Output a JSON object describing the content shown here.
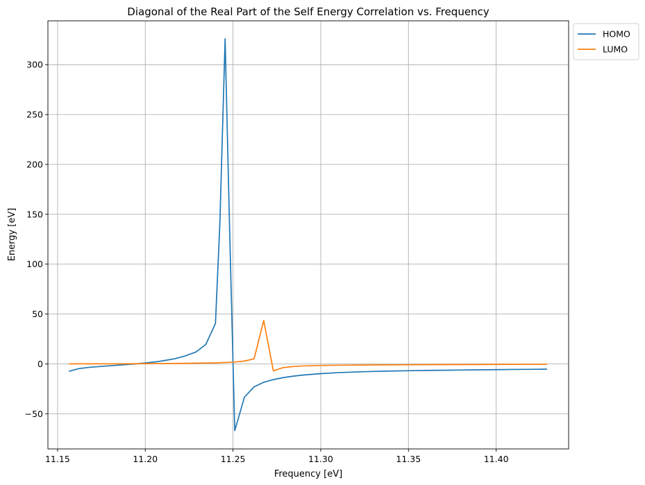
{
  "chart_data": {
    "type": "line",
    "title": "Diagonal of the Real Part of the Self Energy Correlation vs. Frequency",
    "xlabel": "Frequency [eV]",
    "ylabel": "Energy [eV]",
    "xlim": [
      11.1445,
      11.4413
    ],
    "ylim": [
      -85.3,
      344
    ],
    "grid": true,
    "legend_position": "outside-top-right",
    "x_ticks": [
      11.15,
      11.2,
      11.25,
      11.3,
      11.35,
      11.4
    ],
    "x_tick_labels": [
      "11.15",
      "11.20",
      "11.25",
      "11.30",
      "11.35",
      "11.40"
    ],
    "y_ticks": [
      -50,
      0,
      50,
      100,
      150,
      200,
      250,
      300
    ],
    "y_tick_labels": [
      "−50",
      "0",
      "50",
      "100",
      "150",
      "200",
      "250",
      "300"
    ],
    "series": [
      {
        "name": "HOMO",
        "color": "#1f77b4",
        "x": [
          11.1565,
          11.162,
          11.1675,
          11.173,
          11.1785,
          11.184,
          11.1895,
          11.195,
          11.2005,
          11.206,
          11.2115,
          11.217,
          11.2225,
          11.229,
          11.2345,
          11.24,
          11.2425,
          11.2455,
          11.248,
          11.251,
          11.2565,
          11.262,
          11.2675,
          11.273,
          11.2785,
          11.284,
          11.29,
          11.3,
          11.31,
          11.32,
          11.33,
          11.34,
          11.35,
          11.36,
          11.37,
          11.38,
          11.39,
          11.4,
          11.41,
          11.42,
          11.429
        ],
        "y": [
          -7.5,
          -4.8,
          -3.6,
          -2.8,
          -2.1,
          -1.4,
          -0.7,
          0.0,
          1.0,
          2.0,
          3.5,
          5.2,
          7.8,
          12.0,
          19.5,
          40.5,
          140.0,
          326.0,
          140.0,
          -67.0,
          -33.5,
          -23.0,
          -18.5,
          -15.8,
          -13.8,
          -12.4,
          -11.2,
          -9.8,
          -8.8,
          -8.1,
          -7.6,
          -7.2,
          -6.9,
          -6.6,
          -6.4,
          -6.2,
          -6.0,
          -5.8,
          -5.6,
          -5.5,
          -5.3
        ]
      },
      {
        "name": "LUMO",
        "color": "#ff7f0e",
        "x": [
          11.1565,
          11.17,
          11.185,
          11.2,
          11.215,
          11.23,
          11.24,
          11.251,
          11.2565,
          11.262,
          11.2675,
          11.273,
          11.2785,
          11.284,
          11.29,
          11.3,
          11.32,
          11.35,
          11.38,
          11.41,
          11.429
        ],
        "y": [
          0.0,
          0.0,
          0.0,
          0.2,
          0.4,
          0.7,
          1.0,
          1.8,
          2.8,
          5.0,
          43.5,
          -7.0,
          -3.8,
          -2.7,
          -2.1,
          -1.6,
          -1.2,
          -0.9,
          -0.7,
          -0.5,
          -0.4
        ]
      }
    ]
  }
}
